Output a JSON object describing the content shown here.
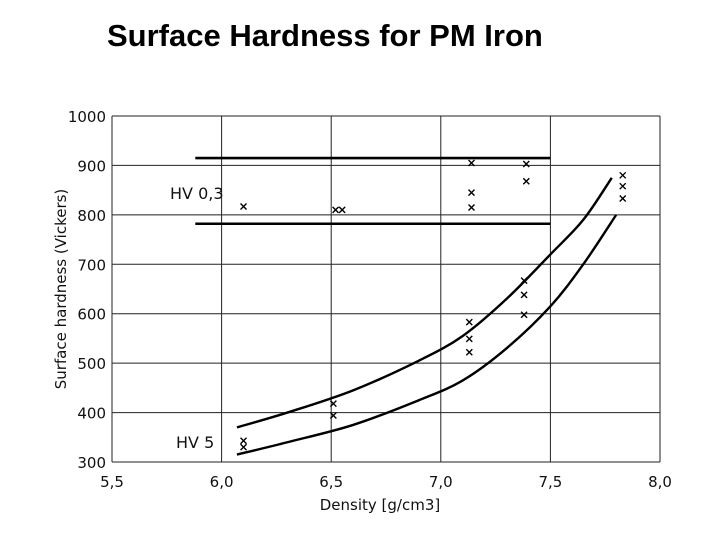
{
  "title": "Surface Hardness for PM Iron",
  "chart_data": {
    "type": "scatter",
    "xlabel": "Density [g/cm3]",
    "ylabel": "Surface hardness (Vickers)",
    "xlim": [
      5.5,
      8.0
    ],
    "ylim": [
      300,
      1000
    ],
    "x_ticks": [
      "5,5",
      "6,0",
      "6,5",
      "7,0",
      "7,5",
      "8,0"
    ],
    "y_ticks": [
      "300",
      "400",
      "500",
      "600",
      "700",
      "800",
      "900",
      "1000"
    ],
    "grid": true,
    "annotations": [
      "HV 0,3",
      "HV 5"
    ],
    "band_hv03": {
      "upper": 915,
      "lower": 782,
      "x_range": [
        5.88,
        7.5
      ]
    },
    "series": [
      {
        "points": [
          {
            "x": 6.1,
            "y": 817
          },
          {
            "x": 6.52,
            "y": 810
          },
          {
            "x": 6.55,
            "y": 810
          },
          {
            "x": 7.14,
            "y": 905
          },
          {
            "x": 7.14,
            "y": 845
          },
          {
            "x": 7.14,
            "y": 815
          },
          {
            "x": 7.39,
            "y": 903
          },
          {
            "x": 7.39,
            "y": 868
          },
          {
            "x": 7.83,
            "y": 880
          },
          {
            "x": 7.83,
            "y": 858
          },
          {
            "x": 7.83,
            "y": 833
          }
        ]
      },
      {
        "points": [
          {
            "x": 6.1,
            "y": 343
          },
          {
            "x": 6.1,
            "y": 330
          },
          {
            "x": 6.51,
            "y": 418
          },
          {
            "x": 6.51,
            "y": 394
          },
          {
            "x": 7.13,
            "y": 583
          },
          {
            "x": 7.13,
            "y": 549
          },
          {
            "x": 7.13,
            "y": 522
          },
          {
            "x": 7.38,
            "y": 667
          },
          {
            "x": 7.38,
            "y": 638
          },
          {
            "x": 7.38,
            "y": 598
          }
        ],
        "curves": [
          [
            [
              6.07,
              370
            ],
            [
              6.3,
              400
            ],
            [
              6.6,
              445
            ],
            [
              6.9,
              505
            ],
            [
              7.1,
              555
            ],
            [
              7.3,
              630
            ],
            [
              7.5,
              720
            ],
            [
              7.65,
              790
            ],
            [
              7.78,
              875
            ]
          ],
          [
            [
              6.07,
              315
            ],
            [
              6.3,
              340
            ],
            [
              6.6,
              375
            ],
            [
              6.9,
              425
            ],
            [
              7.1,
              465
            ],
            [
              7.3,
              530
            ],
            [
              7.5,
              615
            ],
            [
              7.65,
              700
            ],
            [
              7.8,
              800
            ]
          ]
        ]
      }
    ]
  }
}
